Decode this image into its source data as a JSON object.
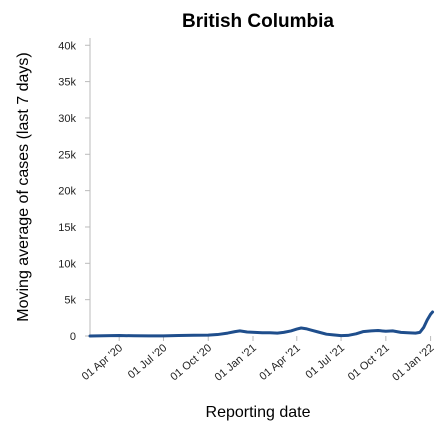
{
  "chart_data": {
    "type": "line",
    "title": "British Columbia",
    "xlabel": "Reporting date",
    "ylabel": "Moving average of cases (last 7 days)",
    "x_ticks": [
      "01 Apr '20",
      "01 Jul '20",
      "01 Oct '20",
      "01 Jan '21",
      "01 Apr '21",
      "01 Jul '21",
      "01 Oct '21",
      "01 Jan '22"
    ],
    "y_ticks": [
      "0",
      "5k",
      "10k",
      "15k",
      "20k",
      "25k",
      "30k",
      "35k",
      "40k"
    ],
    "ylim": [
      0,
      41000
    ],
    "xlim": [
      "2020-02-01",
      "2022-01-08"
    ],
    "grid": false,
    "series": [
      {
        "color": "#1f4e8c",
        "x": [
          "2020-02-01",
          "2020-03-15",
          "2020-04-01",
          "2020-05-01",
          "2020-06-01",
          "2020-07-01",
          "2020-08-01",
          "2020-09-01",
          "2020-10-01",
          "2020-10-20",
          "2020-11-10",
          "2020-11-25",
          "2020-12-05",
          "2020-12-20",
          "2021-01-05",
          "2021-01-20",
          "2021-02-05",
          "2021-02-20",
          "2021-03-05",
          "2021-03-20",
          "2021-04-01",
          "2021-04-10",
          "2021-04-20",
          "2021-05-01",
          "2021-05-15",
          "2021-06-01",
          "2021-06-15",
          "2021-07-01",
          "2021-07-15",
          "2021-08-01",
          "2021-08-15",
          "2021-09-01",
          "2021-09-15",
          "2021-10-01",
          "2021-10-15",
          "2021-11-01",
          "2021-11-15",
          "2021-12-01",
          "2021-12-10",
          "2021-12-18",
          "2021-12-25",
          "2022-01-01",
          "2022-01-05"
        ],
        "y": [
          0,
          50,
          60,
          30,
          15,
          20,
          60,
          100,
          120,
          200,
          400,
          600,
          700,
          550,
          500,
          450,
          450,
          400,
          500,
          700,
          950,
          1100,
          1000,
          800,
          550,
          250,
          150,
          50,
          80,
          300,
          600,
          700,
          750,
          650,
          700,
          500,
          450,
          400,
          500,
          1200,
          2200,
          3000,
          3300
        ]
      }
    ]
  }
}
